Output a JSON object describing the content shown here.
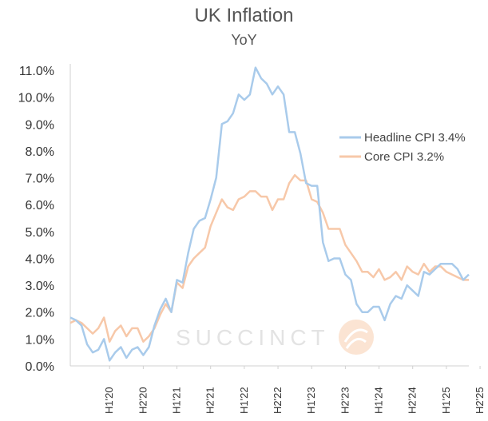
{
  "chart_data": {
    "type": "line",
    "title": "UK Inflation",
    "subtitle": "YoY",
    "xlabel": "",
    "ylabel": "",
    "ylim": [
      0,
      11
    ],
    "yticks": [
      "0.0%",
      "1.0%",
      "2.0%",
      "3.0%",
      "4.0%",
      "5.0%",
      "6.0%",
      "7.0%",
      "8.0%",
      "9.0%",
      "10.0%",
      "11.0%"
    ],
    "xticks": [
      {
        "label": "H1'20",
        "index": 7
      },
      {
        "label": "H2'20",
        "index": 13
      },
      {
        "label": "H1'21",
        "index": 19
      },
      {
        "label": "H2'21",
        "index": 25
      },
      {
        "label": "H1'22",
        "index": 31
      },
      {
        "label": "H2'22",
        "index": 37
      },
      {
        "label": "H1'23",
        "index": 43
      },
      {
        "label": "H2'23",
        "index": 49
      },
      {
        "label": "H1'24",
        "index": 55
      },
      {
        "label": "H2'24",
        "index": 61
      },
      {
        "label": "H1'25",
        "index": 67
      },
      {
        "label": "H2'25",
        "index": 73
      }
    ],
    "series": [
      {
        "name": "Headline CPI 3.4%",
        "color": "#a9cbeb",
        "values": [
          1.8,
          1.7,
          1.5,
          0.8,
          0.5,
          0.6,
          1.0,
          0.2,
          0.5,
          0.7,
          0.3,
          0.6,
          0.7,
          0.4,
          0.7,
          1.5,
          2.1,
          2.5,
          2.0,
          3.2,
          3.1,
          4.2,
          5.1,
          5.4,
          5.5,
          6.2,
          7.0,
          9.0,
          9.1,
          9.4,
          10.1,
          9.9,
          10.1,
          11.1,
          10.7,
          10.5,
          10.1,
          10.4,
          10.1,
          8.7,
          8.7,
          7.9,
          6.8,
          6.7,
          6.7,
          4.6,
          3.9,
          4.0,
          4.0,
          3.4,
          3.2,
          2.3,
          2.0,
          2.0,
          2.2,
          2.2,
          1.7,
          2.3,
          2.6,
          2.5,
          3.0,
          2.8,
          2.6,
          3.5,
          3.4,
          3.6,
          3.8,
          3.8,
          3.8,
          3.6,
          3.2,
          3.4
        ]
      },
      {
        "name": "Core CPI 3.2%",
        "color": "#f7c8a9",
        "values": [
          1.6,
          1.7,
          1.6,
          1.4,
          1.2,
          1.4,
          1.8,
          0.9,
          1.3,
          1.5,
          1.1,
          1.4,
          1.4,
          0.9,
          1.1,
          1.4,
          1.9,
          2.3,
          2.0,
          3.1,
          2.9,
          3.7,
          4.0,
          4.2,
          4.4,
          5.2,
          5.7,
          6.2,
          5.9,
          5.8,
          6.2,
          6.3,
          6.5,
          6.5,
          6.3,
          6.3,
          5.8,
          6.2,
          6.2,
          6.8,
          7.1,
          6.9,
          6.9,
          6.2,
          6.1,
          5.7,
          5.1,
          5.1,
          5.1,
          4.5,
          4.2,
          3.9,
          3.5,
          3.5,
          3.3,
          3.6,
          3.2,
          3.3,
          3.5,
          3.2,
          3.7,
          3.5,
          3.4,
          3.8,
          3.5,
          3.7,
          3.7,
          3.5,
          3.4,
          3.3,
          3.2,
          3.2
        ]
      }
    ],
    "legend": "right",
    "grid": false,
    "watermark": "SUCCINCT"
  }
}
